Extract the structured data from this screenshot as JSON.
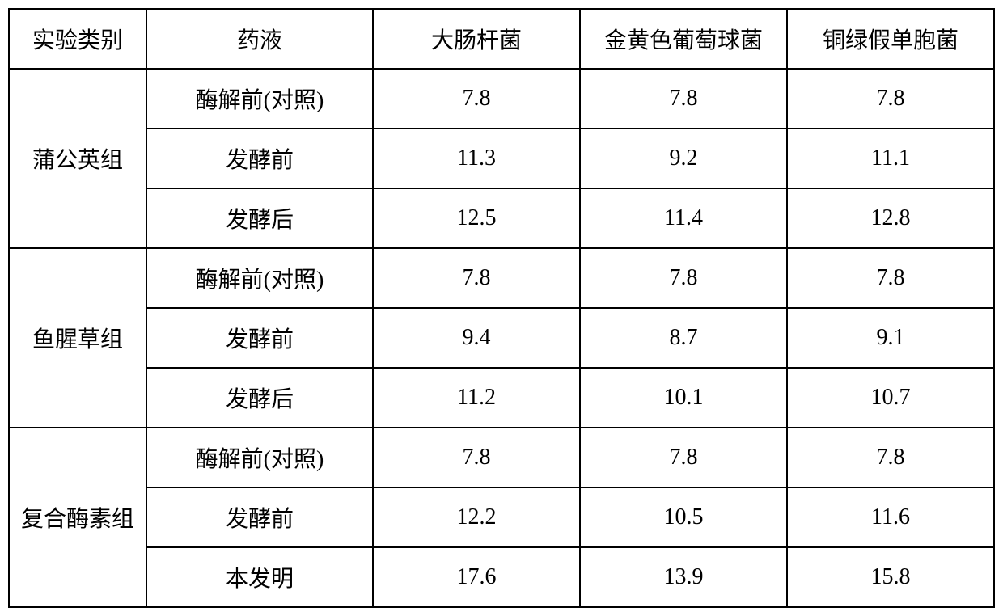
{
  "table": {
    "headers": {
      "category": "实验类别",
      "solution": "药液",
      "ecoli": "大肠杆菌",
      "staph": "金黄色葡萄球菌",
      "pseudomonas": "铜绿假单胞菌"
    },
    "groups": [
      {
        "name": "蒲公英组",
        "rows": [
          {
            "solution": "酶解前(对照)",
            "ecoli": "7.8",
            "staph": "7.8",
            "pseudomonas": "7.8"
          },
          {
            "solution": "发酵前",
            "ecoli": "11.3",
            "staph": "9.2",
            "pseudomonas": "11.1"
          },
          {
            "solution": "发酵后",
            "ecoli": "12.5",
            "staph": "11.4",
            "pseudomonas": "12.8"
          }
        ]
      },
      {
        "name": "鱼腥草组",
        "rows": [
          {
            "solution": "酶解前(对照)",
            "ecoli": "7.8",
            "staph": "7.8",
            "pseudomonas": "7.8"
          },
          {
            "solution": "发酵前",
            "ecoli": "9.4",
            "staph": "8.7",
            "pseudomonas": "9.1"
          },
          {
            "solution": "发酵后",
            "ecoli": "11.2",
            "staph": "10.1",
            "pseudomonas": "10.7"
          }
        ]
      },
      {
        "name": "复合酶素组",
        "rows": [
          {
            "solution": "酶解前(对照)",
            "ecoli": "7.8",
            "staph": "7.8",
            "pseudomonas": "7.8"
          },
          {
            "solution": "发酵前",
            "ecoli": "12.2",
            "staph": "10.5",
            "pseudomonas": "11.6"
          },
          {
            "solution": "本发明",
            "ecoli": "17.6",
            "staph": "13.9",
            "pseudomonas": "15.8"
          }
        ]
      }
    ]
  }
}
